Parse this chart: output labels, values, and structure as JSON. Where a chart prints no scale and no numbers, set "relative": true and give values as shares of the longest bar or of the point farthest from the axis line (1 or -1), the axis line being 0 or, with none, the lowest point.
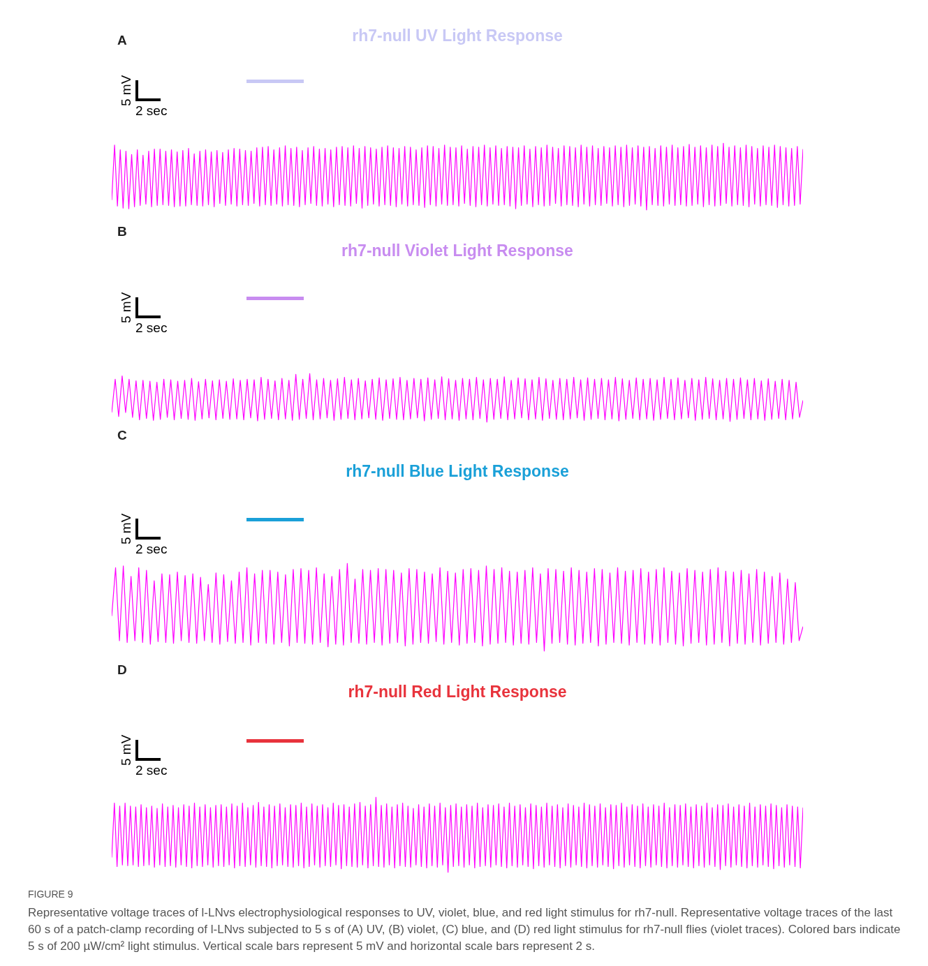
{
  "chart_data": [
    {
      "type": "line",
      "title": "rh7-null UV Light Response",
      "relative": true,
      "annotations": [
        "A",
        "5 mV",
        "2 sec"
      ],
      "categories": [
        null,
        null,
        null,
        null,
        null,
        null,
        null,
        null,
        null,
        null,
        null,
        null,
        null,
        null,
        null,
        null,
        null,
        null,
        null,
        null,
        null,
        null,
        null,
        null,
        null,
        null,
        null,
        null,
        null,
        null,
        null,
        null,
        null,
        null,
        null,
        null,
        null,
        null,
        null,
        null,
        null,
        null,
        null,
        null,
        null,
        null,
        null,
        null,
        null,
        null,
        null,
        null,
        null,
        null,
        null,
        null,
        null,
        null,
        null,
        null,
        null,
        null,
        null,
        null,
        null,
        null,
        null,
        null,
        null,
        null,
        null,
        null,
        null,
        null,
        null,
        null,
        null,
        null,
        null,
        null,
        null,
        null,
        null,
        null,
        null,
        null,
        null,
        null,
        null,
        null,
        null,
        null,
        null,
        null,
        null,
        null,
        null,
        null,
        null,
        null,
        null,
        null,
        null,
        null,
        null,
        null,
        null,
        null,
        null,
        null,
        null,
        null,
        null,
        null,
        null,
        null,
        null,
        null,
        null,
        null,
        null,
        null,
        null,
        null,
        null,
        null,
        null,
        null,
        null,
        null,
        null,
        null,
        null,
        null,
        null,
        null,
        null,
        null,
        null,
        null,
        null,
        null,
        null,
        null,
        null,
        null,
        null,
        null,
        null,
        null,
        null,
        null,
        null,
        null,
        null,
        null,
        null,
        null,
        null,
        null,
        null,
        null,
        null,
        null,
        null,
        null,
        null,
        null,
        null,
        null,
        null,
        null,
        null,
        null,
        null,
        null,
        null,
        null,
        null,
        null,
        null,
        null,
        null,
        null,
        null,
        null,
        null,
        null,
        null,
        null,
        null,
        null,
        null,
        null,
        null,
        null,
        null,
        null,
        null,
        null,
        null,
        null,
        null,
        null,
        null,
        null,
        null,
        null,
        null,
        null,
        null,
        null,
        null,
        null,
        null,
        null,
        null,
        null,
        null,
        null,
        null,
        null,
        null,
        null,
        null,
        null,
        null,
        null,
        null,
        null,
        null,
        null,
        null,
        null,
        null,
        null,
        null,
        null,
        null,
        null,
        null,
        null,
        null,
        null
      ],
      "series": [
        {
          "color": "#ff00ff",
          "values": [
            0.15,
            0.97,
            0.06,
            0.9,
            0.03,
            0.88,
            0.02,
            0.83,
            0.05,
            0.9,
            0.07,
            0.82,
            0.09,
            0.88,
            0.05,
            0.91,
            0.07,
            0.91,
            0.08,
            0.88,
            0.07,
            0.9,
            0.05,
            0.87,
            0.06,
            0.89,
            0.06,
            0.92,
            0.08,
            0.84,
            0.07,
            0.88,
            0.06,
            0.9,
            0.08,
            0.87,
            0.05,
            0.89,
            0.1,
            0.86,
            0.07,
            0.9,
            0.09,
            0.92,
            0.06,
            0.91,
            0.08,
            0.89,
            0.07,
            0.88,
            0.1,
            0.93,
            0.06,
            0.94,
            0.08,
            0.95,
            0.07,
            0.9,
            0.09,
            0.93,
            0.06,
            0.96,
            0.08,
            0.92,
            0.07,
            0.94,
            0.05,
            0.89,
            0.08,
            0.93,
            0.1,
            0.95,
            0.07,
            0.91,
            0.06,
            0.92,
            0.09,
            0.9,
            0.05,
            0.94,
            0.08,
            0.95,
            0.07,
            0.93,
            0.06,
            0.96,
            0.1,
            0.92,
            0.03,
            0.95,
            0.07,
            0.93,
            0.09,
            0.91,
            0.06,
            0.94,
            0.08,
            0.96,
            0.07,
            0.93,
            0.05,
            0.92,
            0.09,
            0.95,
            0.06,
            0.94,
            0.08,
            0.9,
            0.07,
            0.93,
            0.04,
            0.96,
            0.08,
            0.95,
            0.06,
            0.92,
            0.09,
            0.97,
            0.07,
            0.94,
            0.08,
            0.93,
            0.06,
            0.96,
            0.1,
            0.91,
            0.07,
            0.95,
            0.05,
            0.94,
            0.08,
            0.97,
            0.06,
            0.93,
            0.09,
            0.96,
            0.07,
            0.92,
            0.08,
            0.95,
            0.06,
            0.94,
            0.02,
            0.93,
            0.07,
            0.96,
            0.09,
            0.91,
            0.05,
            0.95,
            0.08,
            0.93,
            0.06,
            0.97,
            0.07,
            0.94,
            0.1,
            0.92,
            0.06,
            0.96,
            0.08,
            0.95,
            0.07,
            0.93,
            0.05,
            0.97,
            0.09,
            0.94,
            0.06,
            0.96,
            0.08,
            0.92,
            0.07,
            0.95,
            0.1,
            0.93,
            0.06,
            0.96,
            0.08,
            0.94,
            0.05,
            0.97,
            0.07,
            0.93,
            0.09,
            0.96,
            0.06,
            0.94,
            0.0,
            0.95,
            0.08,
            0.92,
            0.07,
            0.96,
            0.06,
            0.94,
            0.09,
            0.97,
            0.07,
            0.93,
            0.08,
            0.95,
            0.06,
            0.98,
            0.07,
            0.94,
            0.09,
            0.96,
            0.05,
            0.93,
            0.08,
            0.97,
            0.06,
            0.95,
            0.07,
            1,
            0.1,
            0.94,
            0.06,
            0.96,
            0.08,
            0.93,
            0.07,
            0.97,
            0.05,
            0.95,
            0.09,
            0.92,
            0.06,
            0.96,
            0.08,
            0.94,
            0.07,
            0.97,
            0.04,
            0.95,
            0.08,
            0.93,
            0.06,
            0.92,
            0.07,
            0.95,
            0.09,
            0.91
          ]
        }
      ]
    },
    {
      "type": "line",
      "title": "rh7-null Violet Light Response",
      "relative": true,
      "annotations": [
        "B",
        "5 mV",
        "2 sec"
      ],
      "categories": [
        null,
        null,
        null,
        null,
        null,
        null,
        null,
        null,
        null,
        null,
        null,
        null,
        null,
        null,
        null,
        null,
        null,
        null,
        null,
        null,
        null,
        null,
        null,
        null,
        null,
        null,
        null,
        null,
        null,
        null,
        null,
        null,
        null,
        null,
        null,
        null,
        null,
        null,
        null,
        null,
        null,
        null,
        null,
        null,
        null,
        null,
        null,
        null,
        null,
        null,
        null,
        null,
        null,
        null,
        null,
        null,
        null,
        null,
        null,
        null,
        null,
        null,
        null,
        null,
        null,
        null,
        null,
        null,
        null,
        null,
        null,
        null,
        null,
        null,
        null,
        null,
        null,
        null,
        null,
        null,
        null,
        null,
        null,
        null,
        null,
        null,
        null,
        null,
        null,
        null,
        null,
        null,
        null,
        null,
        null,
        null,
        null,
        null,
        null,
        null,
        null,
        null,
        null,
        null,
        null,
        null,
        null,
        null,
        null,
        null,
        null,
        null,
        null,
        null,
        null,
        null,
        null,
        null,
        null,
        null,
        null,
        null,
        null,
        null,
        null,
        null,
        null,
        null,
        null,
        null,
        null,
        null,
        null,
        null,
        null,
        null,
        null,
        null,
        null,
        null,
        null,
        null,
        null,
        null,
        null,
        null,
        null,
        null,
        null,
        null,
        null,
        null,
        null,
        null,
        null,
        null,
        null,
        null,
        null,
        null,
        null,
        null,
        null,
        null,
        null,
        null,
        null,
        null,
        null,
        null,
        null,
        null,
        null,
        null,
        null,
        null,
        null,
        null,
        null,
        null,
        null,
        null,
        null,
        null,
        null,
        null,
        null,
        null,
        null,
        null,
        null,
        null,
        null,
        null,
        null,
        null,
        null,
        null,
        null,
        null
      ],
      "series": [
        {
          "color": "#ff00ff",
          "values": [
            0.2,
            0.88,
            0.12,
            0.95,
            0.2,
            0.88,
            0.1,
            0.85,
            0.05,
            0.86,
            0.08,
            0.84,
            0.04,
            0.82,
            0.06,
            0.88,
            0.1,
            0.87,
            0.05,
            0.84,
            0.08,
            0.86,
            0.06,
            0.9,
            0.04,
            0.83,
            0.07,
            0.88,
            0.09,
            0.85,
            0.05,
            0.87,
            0.08,
            0.84,
            0.06,
            0.89,
            0.07,
            0.86,
            0.05,
            0.88,
            0.09,
            0.87,
            0.03,
            0.92,
            0.06,
            0.88,
            0.08,
            0.85,
            0.05,
            0.9,
            0.07,
            0.86,
            0.04,
            0.98,
            0.06,
            0.88,
            0.08,
            1,
            0.05,
            0.87,
            0.07,
            0.9,
            0.09,
            0.86,
            0.04,
            0.89,
            0.06,
            0.92,
            0.08,
            0.87,
            0.05,
            0.9,
            0.07,
            0.85,
            0.09,
            0.88,
            0.06,
            0.91,
            0.04,
            0.87,
            0.08,
            0.89,
            0.06,
            0.92,
            0.05,
            0.86,
            0.07,
            0.9,
            0.09,
            0.88,
            0.03,
            0.91,
            0.06,
            0.87,
            0.08,
            0.93,
            0.05,
            0.89,
            0.07,
            0.86,
            0.04,
            0.9,
            0.07,
            0.88,
            0.05,
            0.92,
            0.08,
            0.87,
            0.0,
            0.9,
            0.06,
            0.88,
            0.08,
            0.93,
            0.05,
            0.86,
            0.07,
            0.91,
            0.09,
            0.89,
            0.05,
            0.87,
            0.07,
            0.92,
            0.04,
            0.89,
            0.08,
            0.86,
            0.06,
            0.9,
            0.05,
            0.88,
            0.07,
            0.92,
            0.09,
            0.87,
            0.04,
            0.91,
            0.06,
            0.88,
            0.08,
            0.9,
            0.05,
            0.87,
            0.07,
            0.92,
            0.03,
            0.89,
            0.06,
            0.86,
            0.08,
            0.91,
            0.05,
            0.88,
            0.07,
            0.9,
            0.04,
            0.87,
            0.06,
            0.92,
            0.08,
            0.88,
            0.05,
            0.91,
            0.07,
            0.86,
            0.09,
            0.9,
            0.04,
            0.87,
            0.06,
            0.92,
            0.08,
            0.89,
            0.05,
            0.86,
            0.07,
            0.9,
            0.02,
            0.88,
            0.06,
            0.91,
            0.08,
            0.87,
            0.05,
            0.9,
            0.07,
            0.85,
            0.04,
            0.89,
            0.06,
            0.84,
            0.08,
            0.88,
            0.05,
            0.86,
            0.07,
            0.82,
            0.1,
            0.45
          ]
        }
      ]
    },
    {
      "type": "line",
      "title": "rh7-null Blue Light Response",
      "relative": true,
      "annotations": [
        "C",
        "5 mV",
        "2 sec"
      ],
      "categories": [
        null,
        null,
        null,
        null,
        null,
        null,
        null,
        null,
        null,
        null,
        null,
        null,
        null,
        null,
        null,
        null,
        null,
        null,
        null,
        null,
        null,
        null,
        null,
        null,
        null,
        null,
        null,
        null,
        null,
        null,
        null,
        null,
        null,
        null,
        null,
        null,
        null,
        null,
        null,
        null,
        null,
        null,
        null,
        null,
        null,
        null,
        null,
        null,
        null,
        null,
        null,
        null,
        null,
        null,
        null,
        null,
        null,
        null,
        null,
        null,
        null,
        null,
        null,
        null,
        null,
        null,
        null,
        null,
        null,
        null,
        null,
        null,
        null,
        null,
        null,
        null,
        null,
        null,
        null,
        null,
        null,
        null,
        null,
        null,
        null,
        null,
        null,
        null,
        null,
        null,
        null,
        null,
        null,
        null,
        null,
        null,
        null,
        null,
        null,
        null,
        null,
        null,
        null,
        null,
        null,
        null,
        null,
        null,
        null,
        null,
        null,
        null,
        null,
        null,
        null,
        null,
        null,
        null,
        null,
        null,
        null,
        null,
        null,
        null,
        null,
        null,
        null,
        null,
        null,
        null,
        null,
        null,
        null,
        null,
        null,
        null,
        null,
        null,
        null,
        null,
        null,
        null,
        null,
        null,
        null,
        null,
        null,
        null,
        null,
        null,
        null,
        null,
        null,
        null,
        null,
        null,
        null,
        null,
        null,
        null,
        null,
        null,
        null,
        null,
        null,
        null,
        null,
        null,
        null,
        null,
        null,
        null,
        null,
        null,
        null,
        null,
        null,
        null,
        null,
        null
      ],
      "series": [
        {
          "color": "#ff00ff",
          "values": [
            0.4,
            0.95,
            0.12,
            0.97,
            0.1,
            0.85,
            0.12,
            0.95,
            0.1,
            0.92,
            0.08,
            0.8,
            0.11,
            0.88,
            0.1,
            0.87,
            0.09,
            0.9,
            0.12,
            0.86,
            0.1,
            0.88,
            0.09,
            0.84,
            0.12,
            0.76,
            0.1,
            0.89,
            0.08,
            0.87,
            0.11,
            0.8,
            0.09,
            0.9,
            0.1,
            0.95,
            0.07,
            0.88,
            0.1,
            0.92,
            0.09,
            0.92,
            0.08,
            0.9,
            0.1,
            0.87,
            0.06,
            0.93,
            0.1,
            0.94,
            0.09,
            0.92,
            0.08,
            0.95,
            0.1,
            0.88,
            0.05,
            0.85,
            0.08,
            0.93,
            0.07,
            1,
            0.1,
            0.82,
            0.09,
            0.93,
            0.08,
            0.92,
            0.1,
            0.94,
            0.07,
            0.93,
            0.09,
            0.92,
            0.1,
            0.89,
            0.06,
            0.94,
            0.08,
            0.93,
            0.1,
            0.9,
            0.09,
            0.88,
            0.11,
            0.95,
            0.08,
            0.91,
            0.1,
            0.89,
            0.07,
            0.93,
            0.09,
            0.94,
            0.1,
            0.92,
            0.06,
            0.97,
            0.08,
            0.93,
            0.09,
            0.95,
            0.1,
            0.91,
            0.07,
            0.9,
            0.09,
            0.92,
            0.08,
            0.95,
            0.1,
            0.88,
            0.0,
            0.94,
            0.09,
            0.93,
            0.1,
            0.91,
            0.08,
            0.95,
            0.07,
            0.92,
            0.09,
            0.9,
            0.1,
            0.94,
            0.06,
            0.93,
            0.08,
            0.89,
            0.1,
            0.95,
            0.09,
            0.91,
            0.07,
            0.92,
            0.1,
            0.94,
            0.08,
            0.9,
            0.09,
            0.93,
            0.07,
            0.95,
            0.1,
            0.91,
            0.08,
            0.89,
            0.06,
            0.94,
            0.09,
            0.92,
            0.1,
            0.9,
            0.07,
            0.93,
            0.08,
            0.95,
            0.1,
            0.91,
            0.06,
            0.9,
            0.09,
            0.92,
            0.08,
            0.88,
            0.1,
            0.93,
            0.07,
            0.9,
            0.09,
            0.85,
            0.1,
            0.89,
            0.08,
            0.82,
            0.1,
            0.78,
            0.12,
            0.28
          ]
        }
      ]
    },
    {
      "type": "line",
      "title": "rh7-null Red Light Response",
      "relative": true,
      "annotations": [
        "D",
        "5 mV",
        "2 sec",
        "FIGURE 9",
        "Representative voltage traces of l-LNvs electrophysiological responses to UV, violet, blue, and red light stimulus for rh7-null. Representative voltage traces of the last 60 s of a patch-clamp recording of l-LNvs subjected to 5 s of (A) UV, (B) violet, (C) blue, and (D) red light stimulus for rh7-null flies (violet traces). Colored bars indicate 5 s of 200 µW/cm² light stimulus. Vertical scale bars represent 5 mV and horizontal scale bars represent 2 s."
      ],
      "categories": [
        null,
        null,
        null,
        null,
        null,
        null,
        null,
        null,
        null,
        null,
        null,
        null,
        null,
        null,
        null,
        null,
        null,
        null,
        null,
        null,
        null,
        null,
        null,
        null,
        null,
        null,
        null,
        null,
        null,
        null,
        null,
        null,
        null,
        null,
        null,
        null,
        null,
        null,
        null,
        null,
        null,
        null,
        null,
        null,
        null,
        null,
        null,
        null,
        null,
        null,
        null,
        null,
        null,
        null,
        null,
        null,
        null,
        null,
        null,
        null,
        null,
        null,
        null,
        null,
        null,
        null,
        null,
        null,
        null,
        null,
        null,
        null,
        null,
        null,
        null,
        null,
        null,
        null,
        null,
        null,
        null,
        null,
        null,
        null,
        null,
        null,
        null,
        null,
        null,
        null,
        null,
        null,
        null,
        null,
        null,
        null,
        null,
        null,
        null,
        null,
        null,
        null,
        null,
        null,
        null,
        null,
        null,
        null,
        null,
        null,
        null,
        null,
        null,
        null,
        null,
        null,
        null,
        null,
        null,
        null,
        null,
        null,
        null,
        null,
        null,
        null,
        null,
        null,
        null,
        null,
        null,
        null,
        null,
        null,
        null,
        null,
        null,
        null,
        null,
        null,
        null,
        null,
        null,
        null,
        null,
        null,
        null,
        null,
        null,
        null,
        null,
        null,
        null,
        null,
        null,
        null,
        null,
        null,
        null,
        null,
        null,
        null,
        null,
        null,
        null,
        null,
        null,
        null,
        null,
        null,
        null,
        null,
        null,
        null,
        null,
        null,
        null,
        null,
        null,
        null,
        null,
        null,
        null,
        null,
        null,
        null,
        null,
        null,
        null,
        null,
        null,
        null,
        null,
        null,
        null,
        null,
        null,
        null,
        null,
        null,
        null,
        null,
        null,
        null,
        null,
        null,
        null,
        null,
        null,
        null,
        null,
        null,
        null,
        null,
        null,
        null,
        null,
        null,
        null,
        null,
        null,
        null,
        null,
        null,
        null,
        null,
        null,
        null,
        null,
        null,
        null,
        null,
        null,
        null,
        null,
        null,
        null,
        null,
        null,
        null,
        null,
        null,
        null,
        null,
        null,
        null,
        null,
        null,
        null,
        null,
        null,
        null,
        null,
        null,
        null,
        null,
        null,
        null,
        null,
        null
      ],
      "series": [
        {
          "color": "#ff00ff",
          "values": [
            0.2,
            0.92,
            0.08,
            0.88,
            0.1,
            0.92,
            0.09,
            0.88,
            0.1,
            0.87,
            0.08,
            0.9,
            0.09,
            0.86,
            0.1,
            0.88,
            0.07,
            0.85,
            0.1,
            0.91,
            0.08,
            0.87,
            0.09,
            0.89,
            0.07,
            0.86,
            0.1,
            0.9,
            0.08,
            0.88,
            0.06,
            0.92,
            0.09,
            0.87,
            0.08,
            0.9,
            0.1,
            0.86,
            0.07,
            0.89,
            0.09,
            0.9,
            0.08,
            0.87,
            0.1,
            0.91,
            0.06,
            0.88,
            0.09,
            0.92,
            0.08,
            0.86,
            0.1,
            0.89,
            0.07,
            0.93,
            0.09,
            0.87,
            0.08,
            0.9,
            0.06,
            0.88,
            0.09,
            0.91,
            0.1,
            0.86,
            0.08,
            0.9,
            0.07,
            0.89,
            0.09,
            0.92,
            0.06,
            0.87,
            0.08,
            0.91,
            0.1,
            0.88,
            0.07,
            0.9,
            0.09,
            0.86,
            0.08,
            0.92,
            0.1,
            0.89,
            0.05,
            0.9,
            0.09,
            0.87,
            0.08,
            0.91,
            0.07,
            0.93,
            0.1,
            0.88,
            0.06,
            0.9,
            0.09,
            1,
            0.08,
            0.89,
            0.07,
            0.91,
            0.1,
            0.87,
            0.06,
            0.9,
            0.09,
            0.92,
            0.08,
            0.88,
            0.07,
            0.85,
            0.1,
            0.9,
            0.08,
            0.87,
            0.06,
            0.91,
            0.09,
            0.88,
            0.07,
            0.92,
            0.1,
            0.86,
            0.0,
            0.89,
            0.08,
            0.91,
            0.09,
            0.87,
            0.07,
            0.9,
            0.1,
            0.88,
            0.06,
            0.92,
            0.08,
            0.86,
            0.09,
            0.9,
            0.07,
            0.89,
            0.1,
            0.91,
            0.08,
            0.87,
            0.06,
            0.92,
            0.09,
            0.88,
            0.07,
            0.9,
            0.1,
            0.86,
            0.08,
            0.91,
            0.05,
            0.89,
            0.09,
            0.87,
            0.07,
            0.92,
            0.1,
            0.88,
            0.08,
            0.9,
            0.06,
            0.86,
            0.09,
            0.91,
            0.07,
            0.89,
            0.1,
            0.87,
            0.08,
            0.92,
            0.06,
            0.9,
            0.09,
            0.88,
            0.07,
            0.91,
            0.1,
            0.86,
            0.08,
            0.9,
            0.05,
            0.89,
            0.09,
            0.92,
            0.07,
            0.87,
            0.1,
            0.9,
            0.08,
            0.88,
            0.06,
            0.91,
            0.09,
            0.87,
            0.07,
            0.9,
            0.1,
            0.88,
            0.08,
            0.92,
            0.06,
            0.86,
            0.09,
            0.9,
            0.07,
            0.89,
            0.1,
            0.91,
            0.08,
            0.87,
            0.06,
            0.9,
            0.09,
            0.88,
            0.07,
            0.92,
            0.1,
            0.86,
            0.08,
            0.9,
            0.04,
            0.89,
            0.09,
            0.91,
            0.07,
            0.87,
            0.1,
            0.9,
            0.08,
            0.88,
            0.06,
            0.92,
            0.09,
            0.87,
            0.07,
            0.9,
            0.1,
            0.88,
            0.08,
            0.91,
            0.05,
            0.89,
            0.09,
            0.86,
            0.07,
            0.9,
            0.1,
            0.88,
            0.08,
            0.87,
            0.06,
            0.86
          ]
        }
      ]
    }
  ]
}
